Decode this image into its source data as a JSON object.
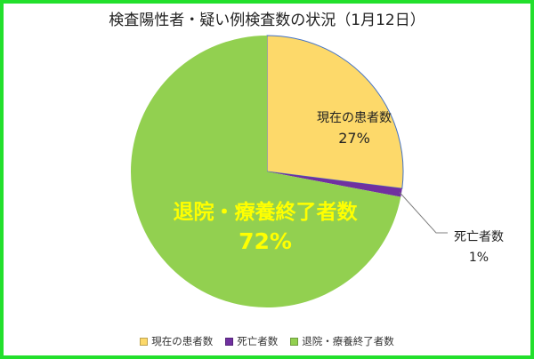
{
  "chart_data": {
    "type": "pie",
    "title": "検査陽性者・疑い例検査数の状況（1月12日）",
    "slices": [
      {
        "name": "現在の患者数",
        "value": 27,
        "label_pct": "27%",
        "color": "#fdd96a"
      },
      {
        "name": "死亡者数",
        "value": 1,
        "label_pct": "1%",
        "color": "#7030a0"
      },
      {
        "name": "退院・療養終了者数",
        "value": 72,
        "label_pct": "72%",
        "color": "#92d050"
      }
    ],
    "start_angle_deg": 0,
    "direction": "clockwise",
    "legend": {
      "position": "bottom"
    }
  },
  "colors": {
    "frame": "#22e02c",
    "big_label": "#ffff00",
    "pie_outline": "#4472c4"
  }
}
